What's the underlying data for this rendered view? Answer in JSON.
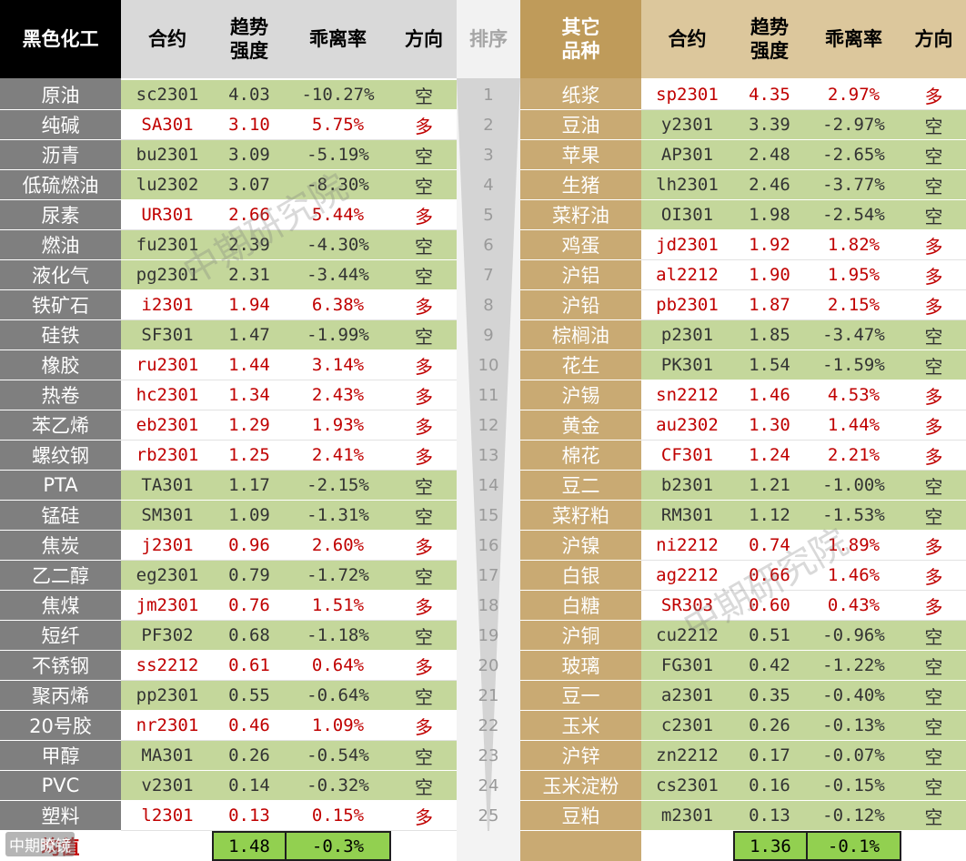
{
  "header": {
    "left_group": "黑色化工",
    "contract": "合约",
    "strength": "趋势\n强度",
    "deviation": "乖离率",
    "direction": "方向",
    "rank": "排序",
    "right_group": "其它\n品种"
  },
  "colors": {
    "long_text": "#c00000",
    "short_bg": "#c4d79b",
    "avg_bg": "#92d050",
    "left_name_bg": "#7f7f7f",
    "right_name_bg": "#c9aa73"
  },
  "rows": [
    {
      "rank": "1",
      "left": {
        "name": "原油",
        "contract": "sc2301",
        "strength": "4.03",
        "deviation": "-10.27%",
        "direction": "空"
      },
      "right": {
        "name": "纸浆",
        "contract": "sp2301",
        "strength": "4.35",
        "deviation": "2.97%",
        "direction": "多"
      }
    },
    {
      "rank": "2",
      "left": {
        "name": "纯碱",
        "contract": "SA301",
        "strength": "3.10",
        "deviation": "5.75%",
        "direction": "多"
      },
      "right": {
        "name": "豆油",
        "contract": "y2301",
        "strength": "3.39",
        "deviation": "-2.97%",
        "direction": "空"
      }
    },
    {
      "rank": "3",
      "left": {
        "name": "沥青",
        "contract": "bu2301",
        "strength": "3.09",
        "deviation": "-5.19%",
        "direction": "空"
      },
      "right": {
        "name": "苹果",
        "contract": "AP301",
        "strength": "2.48",
        "deviation": "-2.65%",
        "direction": "空"
      }
    },
    {
      "rank": "4",
      "left": {
        "name": "低硫燃油",
        "contract": "lu2302",
        "strength": "3.07",
        "deviation": "-8.30%",
        "direction": "空"
      },
      "right": {
        "name": "生猪",
        "contract": "lh2301",
        "strength": "2.46",
        "deviation": "-3.77%",
        "direction": "空"
      }
    },
    {
      "rank": "5",
      "left": {
        "name": "尿素",
        "contract": "UR301",
        "strength": "2.66",
        "deviation": "5.44%",
        "direction": "多"
      },
      "right": {
        "name": "菜籽油",
        "contract": "OI301",
        "strength": "1.98",
        "deviation": "-2.54%",
        "direction": "空"
      }
    },
    {
      "rank": "6",
      "left": {
        "name": "燃油",
        "contract": "fu2301",
        "strength": "2.39",
        "deviation": "-4.30%",
        "direction": "空"
      },
      "right": {
        "name": "鸡蛋",
        "contract": "jd2301",
        "strength": "1.92",
        "deviation": "1.82%",
        "direction": "多"
      }
    },
    {
      "rank": "7",
      "left": {
        "name": "液化气",
        "contract": "pg2301",
        "strength": "2.31",
        "deviation": "-3.44%",
        "direction": "空"
      },
      "right": {
        "name": "沪铝",
        "contract": "al2212",
        "strength": "1.90",
        "deviation": "1.95%",
        "direction": "多"
      }
    },
    {
      "rank": "8",
      "left": {
        "name": "铁矿石",
        "contract": "i2301",
        "strength": "1.94",
        "deviation": "6.38%",
        "direction": "多"
      },
      "right": {
        "name": "沪铅",
        "contract": "pb2301",
        "strength": "1.87",
        "deviation": "2.15%",
        "direction": "多"
      }
    },
    {
      "rank": "9",
      "left": {
        "name": "硅铁",
        "contract": "SF301",
        "strength": "1.47",
        "deviation": "-1.99%",
        "direction": "空"
      },
      "right": {
        "name": "棕榈油",
        "contract": "p2301",
        "strength": "1.85",
        "deviation": "-3.47%",
        "direction": "空"
      }
    },
    {
      "rank": "10",
      "left": {
        "name": "橡胶",
        "contract": "ru2301",
        "strength": "1.44",
        "deviation": "3.14%",
        "direction": "多"
      },
      "right": {
        "name": "花生",
        "contract": "PK301",
        "strength": "1.54",
        "deviation": "-1.59%",
        "direction": "空"
      }
    },
    {
      "rank": "11",
      "left": {
        "name": "热卷",
        "contract": "hc2301",
        "strength": "1.34",
        "deviation": "2.43%",
        "direction": "多"
      },
      "right": {
        "name": "沪锡",
        "contract": "sn2212",
        "strength": "1.46",
        "deviation": "4.53%",
        "direction": "多"
      }
    },
    {
      "rank": "12",
      "left": {
        "name": "苯乙烯",
        "contract": "eb2301",
        "strength": "1.29",
        "deviation": "1.93%",
        "direction": "多"
      },
      "right": {
        "name": "黄金",
        "contract": "au2302",
        "strength": "1.30",
        "deviation": "1.44%",
        "direction": "多"
      }
    },
    {
      "rank": "13",
      "left": {
        "name": "螺纹钢",
        "contract": "rb2301",
        "strength": "1.25",
        "deviation": "2.41%",
        "direction": "多"
      },
      "right": {
        "name": "棉花",
        "contract": "CF301",
        "strength": "1.24",
        "deviation": "2.21%",
        "direction": "多"
      }
    },
    {
      "rank": "14",
      "left": {
        "name": "PTA",
        "contract": "TA301",
        "strength": "1.17",
        "deviation": "-2.15%",
        "direction": "空"
      },
      "right": {
        "name": "豆二",
        "contract": "b2301",
        "strength": "1.21",
        "deviation": "-1.00%",
        "direction": "空"
      }
    },
    {
      "rank": "15",
      "left": {
        "name": "锰硅",
        "contract": "SM301",
        "strength": "1.09",
        "deviation": "-1.31%",
        "direction": "空"
      },
      "right": {
        "name": "菜籽粕",
        "contract": "RM301",
        "strength": "1.12",
        "deviation": "-1.53%",
        "direction": "空"
      }
    },
    {
      "rank": "16",
      "left": {
        "name": "焦炭",
        "contract": "j2301",
        "strength": "0.96",
        "deviation": "2.60%",
        "direction": "多"
      },
      "right": {
        "name": "沪镍",
        "contract": "ni2212",
        "strength": "0.74",
        "deviation": "1.89%",
        "direction": "多"
      }
    },
    {
      "rank": "17",
      "left": {
        "name": "乙二醇",
        "contract": "eg2301",
        "strength": "0.79",
        "deviation": "-1.72%",
        "direction": "空"
      },
      "right": {
        "name": "白银",
        "contract": "ag2212",
        "strength": "0.66",
        "deviation": "1.46%",
        "direction": "多"
      }
    },
    {
      "rank": "18",
      "left": {
        "name": "焦煤",
        "contract": "jm2301",
        "strength": "0.76",
        "deviation": "1.51%",
        "direction": "多"
      },
      "right": {
        "name": "白糖",
        "contract": "SR303",
        "strength": "0.60",
        "deviation": "0.43%",
        "direction": "多"
      }
    },
    {
      "rank": "19",
      "left": {
        "name": "短纤",
        "contract": "PF302",
        "strength": "0.68",
        "deviation": "-1.18%",
        "direction": "空"
      },
      "right": {
        "name": "沪铜",
        "contract": "cu2212",
        "strength": "0.51",
        "deviation": "-0.96%",
        "direction": "空"
      }
    },
    {
      "rank": "20",
      "left": {
        "name": "不锈钢",
        "contract": "ss2212",
        "strength": "0.61",
        "deviation": "0.64%",
        "direction": "多"
      },
      "right": {
        "name": "玻璃",
        "contract": "FG301",
        "strength": "0.42",
        "deviation": "-1.22%",
        "direction": "空"
      }
    },
    {
      "rank": "21",
      "left": {
        "name": "聚丙烯",
        "contract": "pp2301",
        "strength": "0.55",
        "deviation": "-0.64%",
        "direction": "空"
      },
      "right": {
        "name": "豆一",
        "contract": "a2301",
        "strength": "0.35",
        "deviation": "-0.40%",
        "direction": "空"
      }
    },
    {
      "rank": "22",
      "left": {
        "name": "20号胶",
        "contract": "nr2301",
        "strength": "0.46",
        "deviation": "1.09%",
        "direction": "多"
      },
      "right": {
        "name": "玉米",
        "contract": "c2301",
        "strength": "0.26",
        "deviation": "-0.13%",
        "direction": "空"
      }
    },
    {
      "rank": "23",
      "left": {
        "name": "甲醇",
        "contract": "MA301",
        "strength": "0.26",
        "deviation": "-0.54%",
        "direction": "空"
      },
      "right": {
        "name": "沪锌",
        "contract": "zn2212",
        "strength": "0.17",
        "deviation": "-0.07%",
        "direction": "空"
      }
    },
    {
      "rank": "24",
      "left": {
        "name": "PVC",
        "contract": "v2301",
        "strength": "0.14",
        "deviation": "-0.32%",
        "direction": "空"
      },
      "right": {
        "name": "玉米淀粉",
        "contract": "cs2301",
        "strength": "0.16",
        "deviation": "-0.15%",
        "direction": "空"
      }
    },
    {
      "rank": "25",
      "left": {
        "name": "塑料",
        "contract": "l2301",
        "strength": "0.13",
        "deviation": "0.15%",
        "direction": "多"
      },
      "right": {
        "name": "豆粕",
        "contract": "m2301",
        "strength": "0.13",
        "deviation": "-0.12%",
        "direction": "空"
      }
    }
  ],
  "average": {
    "label": "均值",
    "left_strength": "1.48",
    "left_deviation": "-0.3%",
    "right_strength": "1.36",
    "right_deviation": "-0.1%"
  },
  "watermark": "中期研究院",
  "brand": "中期瞭镜"
}
